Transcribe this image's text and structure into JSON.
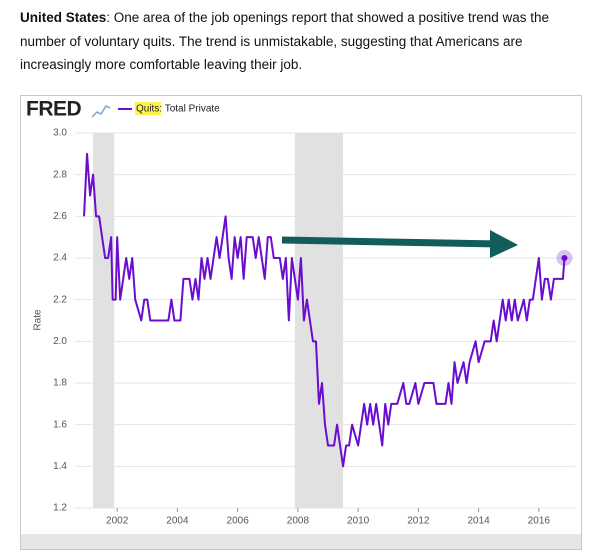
{
  "paragraph": {
    "bold": "United States",
    "text": ": One area of the job openings report that showed a positive trend was the number of voluntary quits. The trend is unmistakable, suggesting that Americans are increasingly more comfortable leaving their job."
  },
  "chart_data": {
    "type": "line",
    "logo": "FRED",
    "ylabel": "Rate",
    "x": [
      2000.9,
      2001.0,
      2001.1,
      2001.2,
      2001.3,
      2001.4,
      2001.5,
      2001.6,
      2001.7,
      2001.8,
      2001.85,
      2001.95,
      2002.0,
      2002.1,
      2002.2,
      2002.3,
      2002.4,
      2002.5,
      2002.6,
      2002.8,
      2002.9,
      2003.0,
      2003.1,
      2003.5,
      2003.7,
      2003.8,
      2003.9,
      2004.1,
      2004.2,
      2004.4,
      2004.5,
      2004.6,
      2004.7,
      2004.8,
      2004.9,
      2005.0,
      2005.1,
      2005.2,
      2005.3,
      2005.4,
      2005.5,
      2005.6,
      2005.7,
      2005.8,
      2005.9,
      2006.0,
      2006.1,
      2006.2,
      2006.3,
      2006.5,
      2006.6,
      2006.7,
      2006.8,
      2006.9,
      2007.0,
      2007.1,
      2007.2,
      2007.3,
      2007.4,
      2007.5,
      2007.6,
      2007.7,
      2007.8,
      2007.9,
      2008.0,
      2008.1,
      2008.2,
      2008.3,
      2008.4,
      2008.5,
      2008.6,
      2008.7,
      2008.8,
      2008.9,
      2009.0,
      2009.2,
      2009.3,
      2009.4,
      2009.5,
      2009.6,
      2009.7,
      2009.8,
      2010.0,
      2010.1,
      2010.2,
      2010.3,
      2010.4,
      2010.5,
      2010.6,
      2010.7,
      2010.8,
      2010.9,
      2011.0,
      2011.1,
      2011.3,
      2011.5,
      2011.6,
      2011.7,
      2011.9,
      2012.0,
      2012.2,
      2012.5,
      2012.6,
      2012.9,
      2013.0,
      2013.1,
      2013.2,
      2013.3,
      2013.5,
      2013.6,
      2013.7,
      2013.9,
      2014.0,
      2014.2,
      2014.4,
      2014.5,
      2014.6,
      2014.7,
      2014.8,
      2014.9,
      2015.0,
      2015.1,
      2015.2,
      2015.3,
      2015.5,
      2015.6,
      2015.7,
      2015.8,
      2016.0,
      2016.1,
      2016.2,
      2016.3,
      2016.4,
      2016.5,
      2016.8,
      2016.85
    ],
    "series": [
      {
        "name": "Quits: Total Private",
        "color": "#6a0dce",
        "values": [
          2.6,
          2.9,
          2.7,
          2.8,
          2.6,
          2.6,
          2.5,
          2.4,
          2.4,
          2.5,
          2.2,
          2.2,
          2.5,
          2.2,
          2.3,
          2.4,
          2.3,
          2.4,
          2.2,
          2.1,
          2.2,
          2.2,
          2.1,
          2.1,
          2.1,
          2.2,
          2.1,
          2.1,
          2.3,
          2.3,
          2.2,
          2.3,
          2.2,
          2.4,
          2.3,
          2.4,
          2.3,
          2.4,
          2.5,
          2.4,
          2.5,
          2.6,
          2.4,
          2.3,
          2.5,
          2.4,
          2.5,
          2.3,
          2.5,
          2.5,
          2.4,
          2.5,
          2.4,
          2.3,
          2.5,
          2.5,
          2.4,
          2.4,
          2.4,
          2.3,
          2.4,
          2.1,
          2.4,
          2.3,
          2.2,
          2.4,
          2.1,
          2.2,
          2.1,
          2.0,
          2.0,
          1.7,
          1.8,
          1.6,
          1.5,
          1.5,
          1.6,
          1.5,
          1.4,
          1.5,
          1.5,
          1.6,
          1.5,
          1.6,
          1.7,
          1.6,
          1.7,
          1.6,
          1.7,
          1.6,
          1.5,
          1.7,
          1.6,
          1.7,
          1.7,
          1.8,
          1.7,
          1.7,
          1.8,
          1.7,
          1.8,
          1.8,
          1.7,
          1.7,
          1.8,
          1.7,
          1.9,
          1.8,
          1.9,
          1.8,
          1.9,
          2.0,
          1.9,
          2.0,
          2.0,
          2.1,
          2.0,
          2.1,
          2.2,
          2.1,
          2.2,
          2.1,
          2.2,
          2.1,
          2.2,
          2.1,
          2.2,
          2.2,
          2.4,
          2.2,
          2.3,
          2.3,
          2.2,
          2.3,
          2.3,
          2.4
        ]
      }
    ],
    "recessions": [
      [
        2001.2,
        2001.9
      ],
      [
        2007.9,
        2009.5
      ]
    ],
    "xlim": [
      2000.6,
      2017.2
    ],
    "xticks": [
      2002,
      2004,
      2006,
      2008,
      2010,
      2012,
      2014,
      2016
    ],
    "ylim": [
      1.2,
      3.0
    ],
    "yticks": [
      1.2,
      1.4,
      1.6,
      1.8,
      {
        "value": 2,
        "label": "2.0"
      },
      2.2,
      2.4,
      2.6,
      2.8,
      {
        "value": 3,
        "label": "3.0"
      }
    ],
    "grid": true
  }
}
